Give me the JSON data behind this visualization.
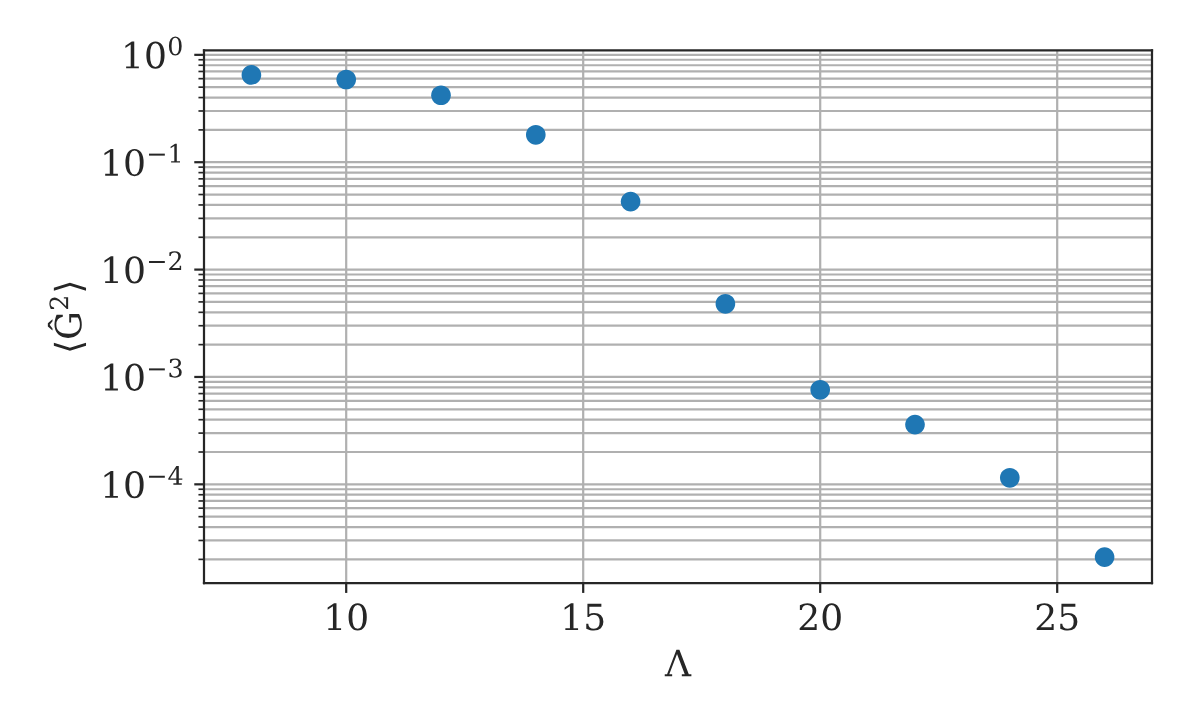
{
  "chart_data": {
    "type": "scatter",
    "xlabel": "Λ",
    "ylabel": "⟨Ĝ$^{2}$⟩",
    "x": [
      8,
      10,
      12,
      14,
      16,
      18,
      20,
      22,
      24,
      26
    ],
    "series": [
      {
        "color": "#1f77b4",
        "values": [
          0.65,
          0.59,
          0.42,
          0.18,
          0.043,
          0.0048,
          0.00076,
          0.00036,
          0.000115,
          2.1e-05
        ]
      }
    ],
    "log": "y",
    "grid": true,
    "marker": "circle",
    "xlim": [
      7,
      27
    ],
    "xticks": [
      10,
      15,
      20,
      25
    ],
    "ylim": [
      1.2e-05,
      1.1
    ],
    "yticks": [
      {
        "value": 1,
        "label": "10$^{0}$"
      },
      {
        "value": 0.1,
        "label": "10$^{−1}$"
      },
      {
        "value": 0.01,
        "label": "10$^{−2}$"
      },
      {
        "value": 0.001,
        "label": "10$^{−3}$"
      },
      {
        "value": 0.0001,
        "label": "10$^{−4}$"
      }
    ]
  }
}
